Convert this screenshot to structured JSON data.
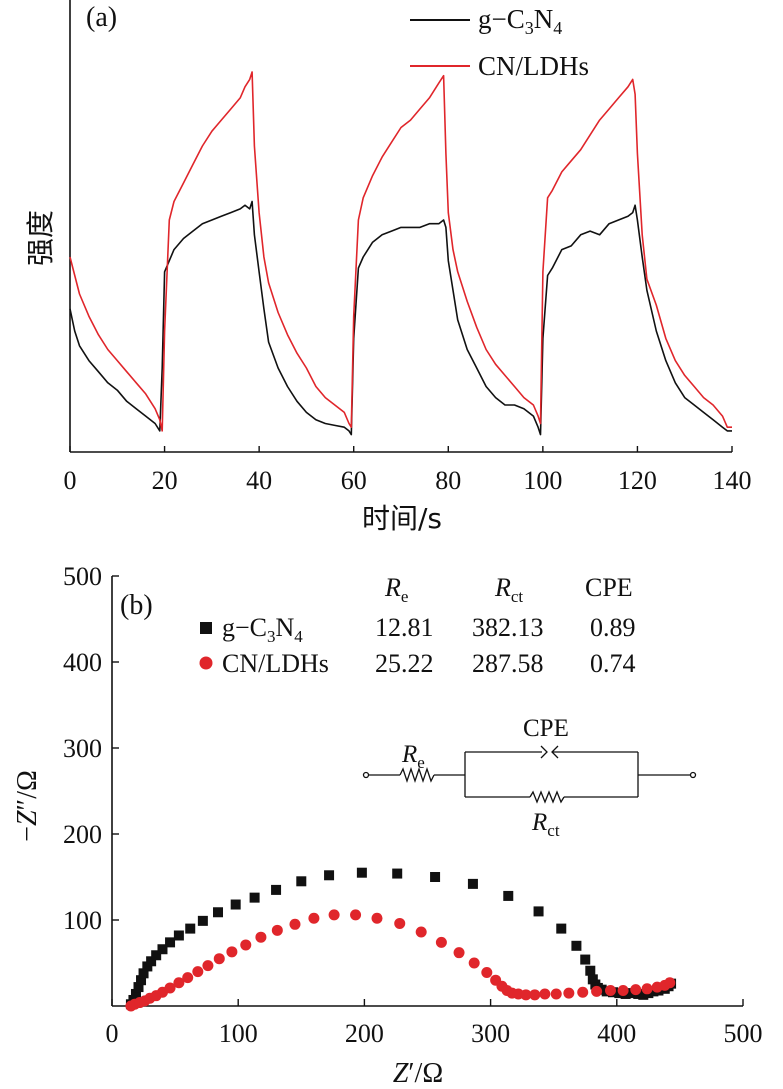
{
  "chart_data": [
    {
      "panel": "(a)",
      "type": "line",
      "xlabel": "时间/s",
      "ylabel": "强度",
      "xlim": [
        0,
        140
      ],
      "ylim": [
        0,
        1
      ],
      "xticks": [
        "0",
        "20",
        "40",
        "60",
        "80",
        "100",
        "120",
        "140"
      ],
      "legend_position": "top-right",
      "series": [
        {
          "name": "g-C3N4",
          "name_parts": [
            "g−C",
            "3",
            "N",
            "4"
          ],
          "color": "#111111",
          "x": [
            0,
            1,
            2,
            4,
            6,
            8,
            10,
            12,
            14,
            16,
            18,
            19,
            19.5,
            20,
            21,
            22,
            24,
            26,
            28,
            30,
            32,
            34,
            36,
            37,
            38,
            38.5,
            39,
            40,
            41,
            42,
            44,
            46,
            48,
            50,
            52,
            54,
            56,
            58,
            59,
            59.5,
            60,
            61,
            62,
            64,
            66,
            68,
            70,
            72,
            74,
            76,
            78,
            79,
            79.5,
            80,
            81,
            82,
            84,
            86,
            88,
            90,
            92,
            94,
            96,
            98,
            99,
            99.5,
            100,
            101,
            102,
            104,
            106,
            108,
            110,
            112,
            114,
            116,
            118,
            119,
            119.5,
            120,
            121,
            122,
            124,
            126,
            128,
            130,
            132,
            134,
            136,
            138,
            139,
            140
          ],
          "y": [
            0.36,
            0.3,
            0.26,
            0.22,
            0.19,
            0.16,
            0.14,
            0.11,
            0.09,
            0.07,
            0.05,
            0.03,
            0.2,
            0.46,
            0.49,
            0.52,
            0.55,
            0.57,
            0.59,
            0.6,
            0.61,
            0.62,
            0.63,
            0.64,
            0.63,
            0.65,
            0.56,
            0.46,
            0.36,
            0.27,
            0.2,
            0.15,
            0.11,
            0.08,
            0.06,
            0.05,
            0.045,
            0.04,
            0.03,
            0.02,
            0.28,
            0.47,
            0.5,
            0.54,
            0.56,
            0.57,
            0.58,
            0.58,
            0.58,
            0.59,
            0.59,
            0.6,
            0.58,
            0.49,
            0.41,
            0.33,
            0.25,
            0.2,
            0.15,
            0.12,
            0.1,
            0.1,
            0.09,
            0.07,
            0.04,
            0.02,
            0.28,
            0.45,
            0.47,
            0.52,
            0.53,
            0.56,
            0.57,
            0.56,
            0.59,
            0.6,
            0.61,
            0.62,
            0.64,
            0.6,
            0.5,
            0.41,
            0.3,
            0.22,
            0.16,
            0.12,
            0.1,
            0.08,
            0.06,
            0.04,
            0.03,
            0.03
          ]
        },
        {
          "name": "CN/LDHs",
          "name_parts": [
            "CN/LDHs"
          ],
          "color": "#e0262b",
          "x": [
            0,
            2,
            4,
            6,
            8,
            10,
            12,
            14,
            16,
            18,
            19,
            19.5,
            20,
            21,
            22,
            24,
            26,
            28,
            30,
            32,
            34,
            36,
            37,
            38,
            38.5,
            39,
            40,
            41,
            42,
            44,
            46,
            48,
            50,
            52,
            54,
            56,
            58,
            59,
            59.5,
            60,
            61,
            62,
            64,
            66,
            68,
            70,
            72,
            74,
            76,
            78,
            79,
            79.5,
            80,
            81,
            82,
            84,
            86,
            88,
            90,
            92,
            94,
            96,
            98,
            99,
            99.5,
            100,
            101,
            102,
            104,
            106,
            108,
            110,
            112,
            114,
            116,
            118,
            119,
            119.5,
            120,
            121,
            122,
            124,
            126,
            128,
            130,
            132,
            134,
            136,
            138,
            139,
            140
          ],
          "y": [
            0.5,
            0.4,
            0.34,
            0.29,
            0.25,
            0.22,
            0.19,
            0.16,
            0.13,
            0.09,
            0.06,
            0.03,
            0.3,
            0.6,
            0.65,
            0.7,
            0.75,
            0.8,
            0.84,
            0.87,
            0.9,
            0.93,
            0.96,
            0.98,
            1.0,
            0.8,
            0.62,
            0.5,
            0.43,
            0.35,
            0.29,
            0.24,
            0.2,
            0.15,
            0.12,
            0.1,
            0.08,
            0.05,
            0.04,
            0.34,
            0.6,
            0.66,
            0.72,
            0.77,
            0.81,
            0.85,
            0.87,
            0.9,
            0.93,
            0.97,
            0.99,
            0.78,
            0.62,
            0.52,
            0.46,
            0.38,
            0.31,
            0.25,
            0.21,
            0.18,
            0.15,
            0.12,
            0.1,
            0.07,
            0.05,
            0.46,
            0.66,
            0.68,
            0.73,
            0.76,
            0.79,
            0.83,
            0.87,
            0.9,
            0.93,
            0.96,
            0.98,
            0.94,
            0.78,
            0.56,
            0.44,
            0.37,
            0.28,
            0.22,
            0.18,
            0.15,
            0.12,
            0.1,
            0.07,
            0.04,
            0.04
          ]
        }
      ]
    },
    {
      "panel": "(b)",
      "type": "scatter",
      "xlabel_parts": [
        "Z",
        "′/Ω"
      ],
      "ylabel_parts": [
        "−",
        "Z",
        "″/Ω"
      ],
      "xlim": [
        0,
        500
      ],
      "ylim": [
        0,
        500
      ],
      "xticks": [
        "0",
        "100",
        "200",
        "300",
        "400",
        "500"
      ],
      "yticks": [
        "100",
        "200",
        "300",
        "400",
        "500"
      ],
      "series": [
        {
          "name": "g-C3N4",
          "name_parts": [
            "g−C",
            "3",
            "N",
            "4"
          ],
          "marker": "square",
          "color": "#111111",
          "x": [
            15,
            17,
            19,
            21,
            23,
            25,
            28,
            31,
            35,
            40,
            46,
            53,
            62,
            72,
            84,
            98,
            113,
            130,
            150,
            172,
            198,
            226,
            256,
            286,
            314,
            338,
            356,
            368,
            375,
            379,
            381,
            383,
            385,
            388,
            392,
            397,
            402,
            407,
            412,
            417,
            421,
            425,
            429,
            433,
            438,
            441,
            443
          ],
          "y": [
            2,
            7,
            14,
            22,
            30,
            38,
            46,
            52,
            59,
            66,
            74,
            82,
            90,
            99,
            109,
            118,
            126,
            135,
            145,
            152,
            155,
            154,
            150,
            142,
            128,
            110,
            90,
            70,
            54,
            41,
            31,
            25,
            21,
            19,
            17,
            16,
            15,
            14,
            15,
            14,
            13,
            15,
            17,
            18,
            20,
            23,
            26
          ],
          "table": {
            "Re": "12.81",
            "Rct": "382.13",
            "CPE": "0.89"
          }
        },
        {
          "name": "CN/LDHs",
          "name_parts": [
            "CN/LDHs"
          ],
          "marker": "circle",
          "color": "#e0262b",
          "x": [
            15,
            18,
            22,
            26,
            30,
            35,
            40,
            46,
            53,
            60,
            68,
            76,
            85,
            95,
            106,
            118,
            131,
            145,
            160,
            176,
            193,
            210,
            228,
            245,
            261,
            275,
            287,
            297,
            304,
            309,
            313,
            317,
            322,
            328,
            335,
            343,
            352,
            362,
            373,
            384,
            395,
            405,
            415,
            424,
            432,
            438,
            442
          ],
          "y": [
            0,
            2,
            4,
            6,
            9,
            12,
            16,
            21,
            27,
            33,
            40,
            47,
            55,
            63,
            71,
            80,
            88,
            95,
            102,
            106,
            106,
            102,
            96,
            86,
            74,
            62,
            50,
            39,
            30,
            23,
            18,
            15,
            14,
            13,
            13,
            14,
            14,
            15,
            16,
            17,
            18,
            18,
            19,
            20,
            22,
            24,
            27
          ],
          "table": {
            "Re": "25.22",
            "Rct": "287.58",
            "CPE": "0.74"
          }
        }
      ],
      "table_headers": {
        "re_main": "R",
        "re_sub": "e",
        "rct_main": "R",
        "rct_sub": "ct",
        "cpe": "CPE"
      },
      "circuit": {
        "re_main": "R",
        "re_sub": "e",
        "cpe": "CPE",
        "rct_main": "R",
        "rct_sub": "ct"
      }
    }
  ]
}
